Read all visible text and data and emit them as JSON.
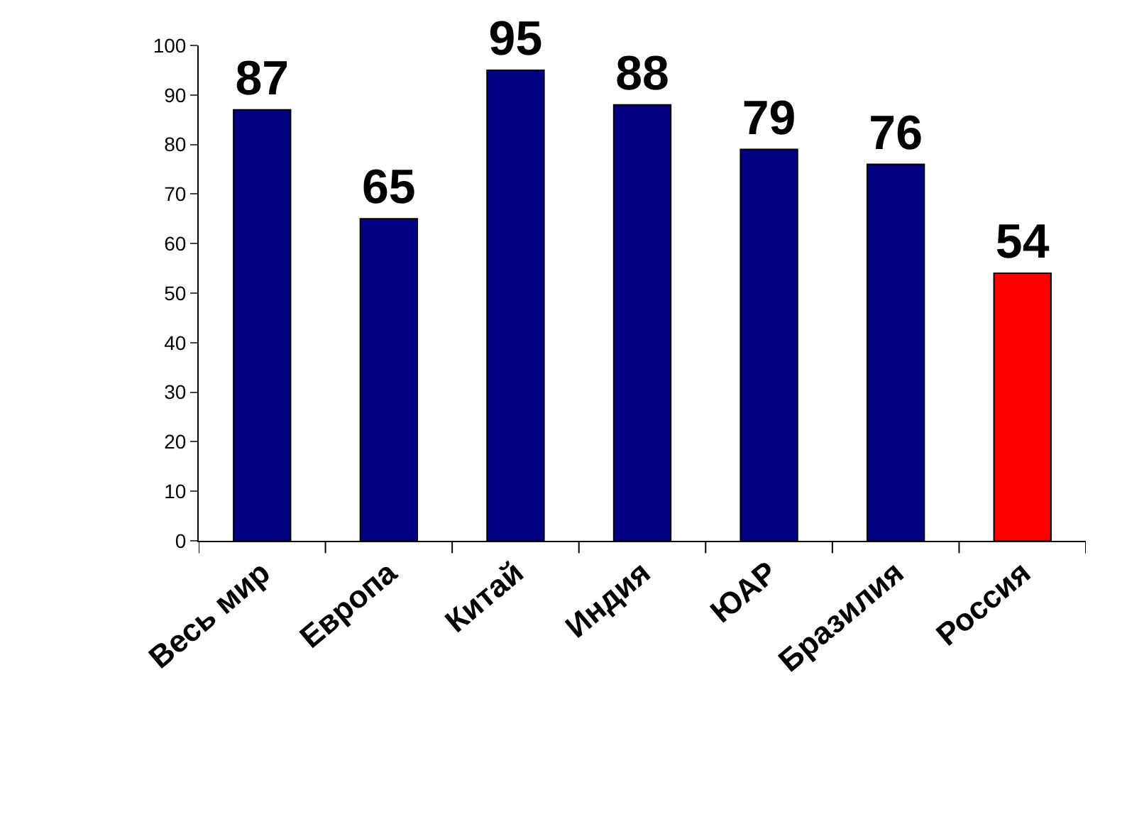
{
  "chart_data": {
    "type": "bar",
    "categories": [
      "Весь мир",
      "Европа",
      "Китай",
      "Индия",
      "ЮАР",
      "Бразилия",
      "Россия"
    ],
    "values": [
      87,
      65,
      95,
      88,
      79,
      76,
      54
    ],
    "colors": [
      "#000080",
      "#000080",
      "#000080",
      "#000080",
      "#000080",
      "#000080",
      "#ff0000"
    ],
    "ylim": [
      0,
      100
    ],
    "yticks": [
      0,
      10,
      20,
      30,
      40,
      50,
      60,
      70,
      80,
      90,
      100
    ],
    "data_labels": true
  }
}
